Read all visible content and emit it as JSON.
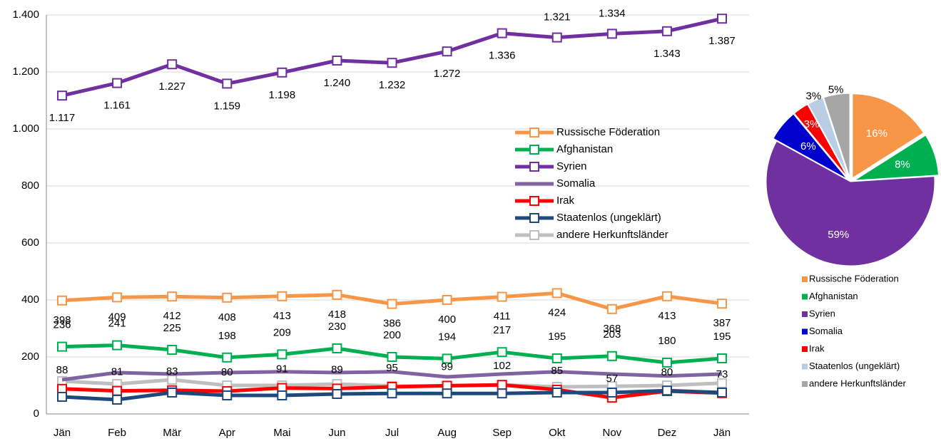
{
  "chart_data": [
    {
      "type": "line",
      "categories": [
        "Jän",
        "Feb",
        "Mär",
        "Apr",
        "Mai",
        "Jun",
        "Jul",
        "Aug",
        "Sep",
        "Okt",
        "Nov",
        "Dez",
        "Jän"
      ],
      "ylim": [
        0,
        1400
      ],
      "yticks": [
        0,
        200,
        400,
        600,
        800,
        {
          "value": 1000,
          "label": "1.000"
        },
        {
          "value": 1200,
          "label": "1.200"
        },
        {
          "value": 1400,
          "label": "1.400"
        }
      ],
      "grid": true,
      "series": [
        {
          "name": "Russische Föderation",
          "color": "#F79646",
          "marker": "square",
          "values": [
            398,
            409,
            412,
            408,
            413,
            418,
            386,
            400,
            411,
            424,
            368,
            413,
            387
          ],
          "value_labels": [
            "398",
            "409",
            "412",
            "408",
            "413",
            "418",
            "386",
            "400",
            "411",
            "424",
            "368",
            "413",
            "387"
          ]
        },
        {
          "name": "Afghanistan",
          "color": "#00B050",
          "marker": "square",
          "values": [
            236,
            241,
            225,
            198,
            209,
            230,
            200,
            194,
            217,
            195,
            203,
            180,
            195
          ],
          "value_labels": [
            "236",
            "241",
            "225",
            "198",
            "209",
            "230",
            "200",
            "194",
            "217",
            "195",
            "203",
            "180",
            "195"
          ]
        },
        {
          "name": "Syrien",
          "color": "#7030A0",
          "marker": "square",
          "values": [
            1117,
            1161,
            1227,
            1159,
            1198,
            1240,
            1232,
            1272,
            1336,
            1321,
            1334,
            1343,
            1387
          ],
          "value_labels": [
            "1.117",
            "1.161",
            "1.227",
            "1.159",
            "1.198",
            "1.240",
            "1.232",
            "1.272",
            "1.336",
            "1.321",
            "1.334",
            "1.343",
            "1.387"
          ]
        },
        {
          "name": "Somalia",
          "color": "#8064A2",
          "marker": "none",
          "values": [
            120,
            145,
            140,
            145,
            148,
            145,
            148,
            130,
            140,
            148,
            140,
            133,
            140
          ]
        },
        {
          "name": "Irak",
          "color": "#FF0000",
          "marker": "square",
          "values": [
            88,
            81,
            83,
            80,
            91,
            89,
            95,
            99,
            102,
            85,
            57,
            80,
            73
          ],
          "value_labels": [
            "88",
            "81",
            "83",
            "80",
            "91",
            "89",
            "95",
            "99",
            "102",
            "85",
            "57",
            "80",
            "73"
          ]
        },
        {
          "name": "Staatenlos (ungeklärt)",
          "color": "#1F497D",
          "marker": "square",
          "values": [
            60,
            50,
            75,
            65,
            65,
            70,
            72,
            72,
            72,
            75,
            75,
            82,
            75
          ]
        },
        {
          "name": "andere Herkunftsländer",
          "color": "#BFBFBF",
          "marker": "square",
          "values": [
            115,
            105,
            120,
            100,
            100,
            105,
            98,
            98,
            102,
            95,
            97,
            100,
            108
          ]
        }
      ]
    },
    {
      "type": "pie",
      "categories": [
        "Russische Föderation",
        "Afghanistan",
        "Syrien",
        "Somalia",
        "Irak",
        "Staatenlos (ungeklärt)",
        "andere Herkunftsländer"
      ],
      "values": [
        16,
        8,
        59,
        6,
        3,
        3,
        5
      ],
      "value_labels": [
        "16%",
        "8%",
        "59%",
        "6%",
        "3%",
        "3%",
        "5%"
      ],
      "colors": [
        "#F79646",
        "#00B050",
        "#7030A0",
        "#0000CC",
        "#FF0000",
        "#B9CDE5",
        "#A6A6A6"
      ]
    }
  ]
}
